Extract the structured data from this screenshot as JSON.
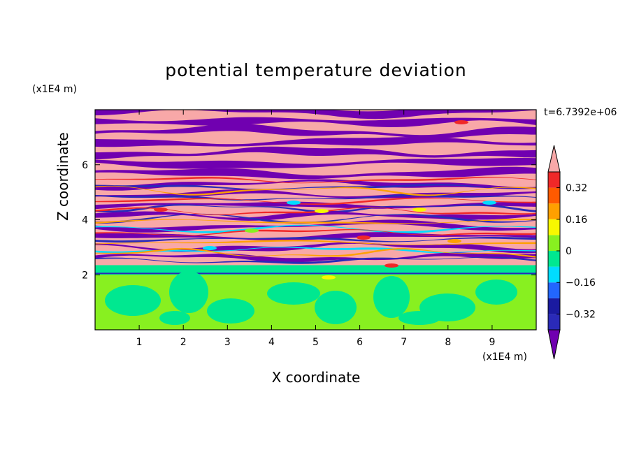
{
  "chart_data": {
    "type": "heatmap",
    "title": "potential temperature deviation",
    "xlabel": "X coordinate",
    "ylabel": "Z coordinate",
    "x_unit": "(x1E4 m)",
    "z_unit": "(x1E4 m)",
    "time_label": "t=6.7392e+06",
    "xlim": [
      0,
      10
    ],
    "ylim": [
      0,
      8
    ],
    "x_ticks": [
      1,
      2,
      3,
      4,
      5,
      6,
      7,
      8,
      9
    ],
    "y_ticks": [
      2,
      4,
      6
    ],
    "colorbar": {
      "levels": [
        -0.4,
        -0.32,
        -0.24,
        -0.16,
        -0.08,
        0,
        0.08,
        0.16,
        0.24,
        0.32,
        0.4
      ],
      "tick_labels": [
        "0.32",
        "0.16",
        "0",
        "−0.16",
        "−0.32"
      ],
      "tick_values": [
        0.32,
        0.16,
        0,
        -0.16,
        -0.32
      ],
      "colors": [
        "#7000b0",
        "#2a2ab8",
        "#1a1aa0",
        "#2266ff",
        "#00dcff",
        "#00e890",
        "#88f020",
        "#f8f800",
        "#ffa000",
        "#ff5a00",
        "#f02828",
        "#f8a8a8"
      ],
      "extend": "both"
    }
  }
}
